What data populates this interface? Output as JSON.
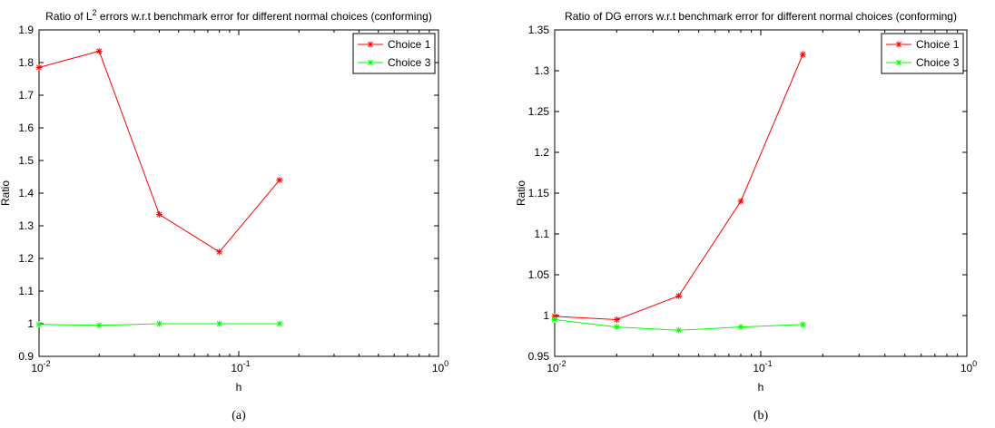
{
  "chart_data": [
    {
      "type": "line",
      "panel_caption": "(a)",
      "title_prefix": "Ratio of L",
      "title_superscript": "2",
      "title_suffix": " errors w.r.t benchmark error for different normal choices (conforming)",
      "xlabel": "h",
      "ylabel": "Ratio",
      "xscale": "log",
      "xlim": [
        0.01,
        1
      ],
      "ylim": [
        0.9,
        1.9
      ],
      "x_ticks": [
        {
          "value": 0.01,
          "base": "10",
          "exp": "-2"
        },
        {
          "value": 0.1,
          "base": "10",
          "exp": "-1"
        },
        {
          "value": 1,
          "base": "10",
          "exp": "0"
        }
      ],
      "y_ticks": [
        "0.9",
        "1",
        "1.1",
        "1.2",
        "1.3",
        "1.4",
        "1.5",
        "1.6",
        "1.7",
        "1.8",
        "1.9"
      ],
      "legend_position": "top-right",
      "series": [
        {
          "name": "Choice 1",
          "color": "#ff0000",
          "marker": "*",
          "x": [
            0.01,
            0.02,
            0.04,
            0.08,
            0.16
          ],
          "y": [
            1.785,
            1.835,
            1.335,
            1.22,
            1.44
          ]
        },
        {
          "name": "Choice 3",
          "color": "#00ff00",
          "marker": "*",
          "x": [
            0.01,
            0.02,
            0.04,
            0.08,
            0.16
          ],
          "y": [
            0.998,
            0.995,
            1.0,
            1.0,
            1.0
          ]
        }
      ]
    },
    {
      "type": "line",
      "panel_caption": "(b)",
      "title_prefix": "Ratio of DG errors w.r.t benchmark error for different normal choices (conforming)",
      "title_superscript": "",
      "title_suffix": "",
      "xlabel": "h",
      "ylabel": "Ratio",
      "xscale": "log",
      "xlim": [
        0.01,
        1
      ],
      "ylim": [
        0.95,
        1.35
      ],
      "x_ticks": [
        {
          "value": 0.01,
          "base": "10",
          "exp": "-2"
        },
        {
          "value": 0.1,
          "base": "10",
          "exp": "-1"
        },
        {
          "value": 1,
          "base": "10",
          "exp": "0"
        }
      ],
      "y_ticks": [
        "0.95",
        "1",
        "1.05",
        "1.1",
        "1.15",
        "1.2",
        "1.25",
        "1.3",
        "1.35"
      ],
      "legend_position": "top-right",
      "series": [
        {
          "name": "Choice 1",
          "color": "#ff0000",
          "marker": "*",
          "x": [
            0.01,
            0.02,
            0.04,
            0.08,
            0.16
          ],
          "y": [
            0.999,
            0.995,
            1.024,
            1.14,
            1.32
          ]
        },
        {
          "name": "Choice 3",
          "color": "#00ff00",
          "marker": "*",
          "x": [
            0.01,
            0.02,
            0.04,
            0.08,
            0.16
          ],
          "y": [
            0.995,
            0.986,
            0.982,
            0.986,
            0.989
          ]
        }
      ]
    }
  ]
}
